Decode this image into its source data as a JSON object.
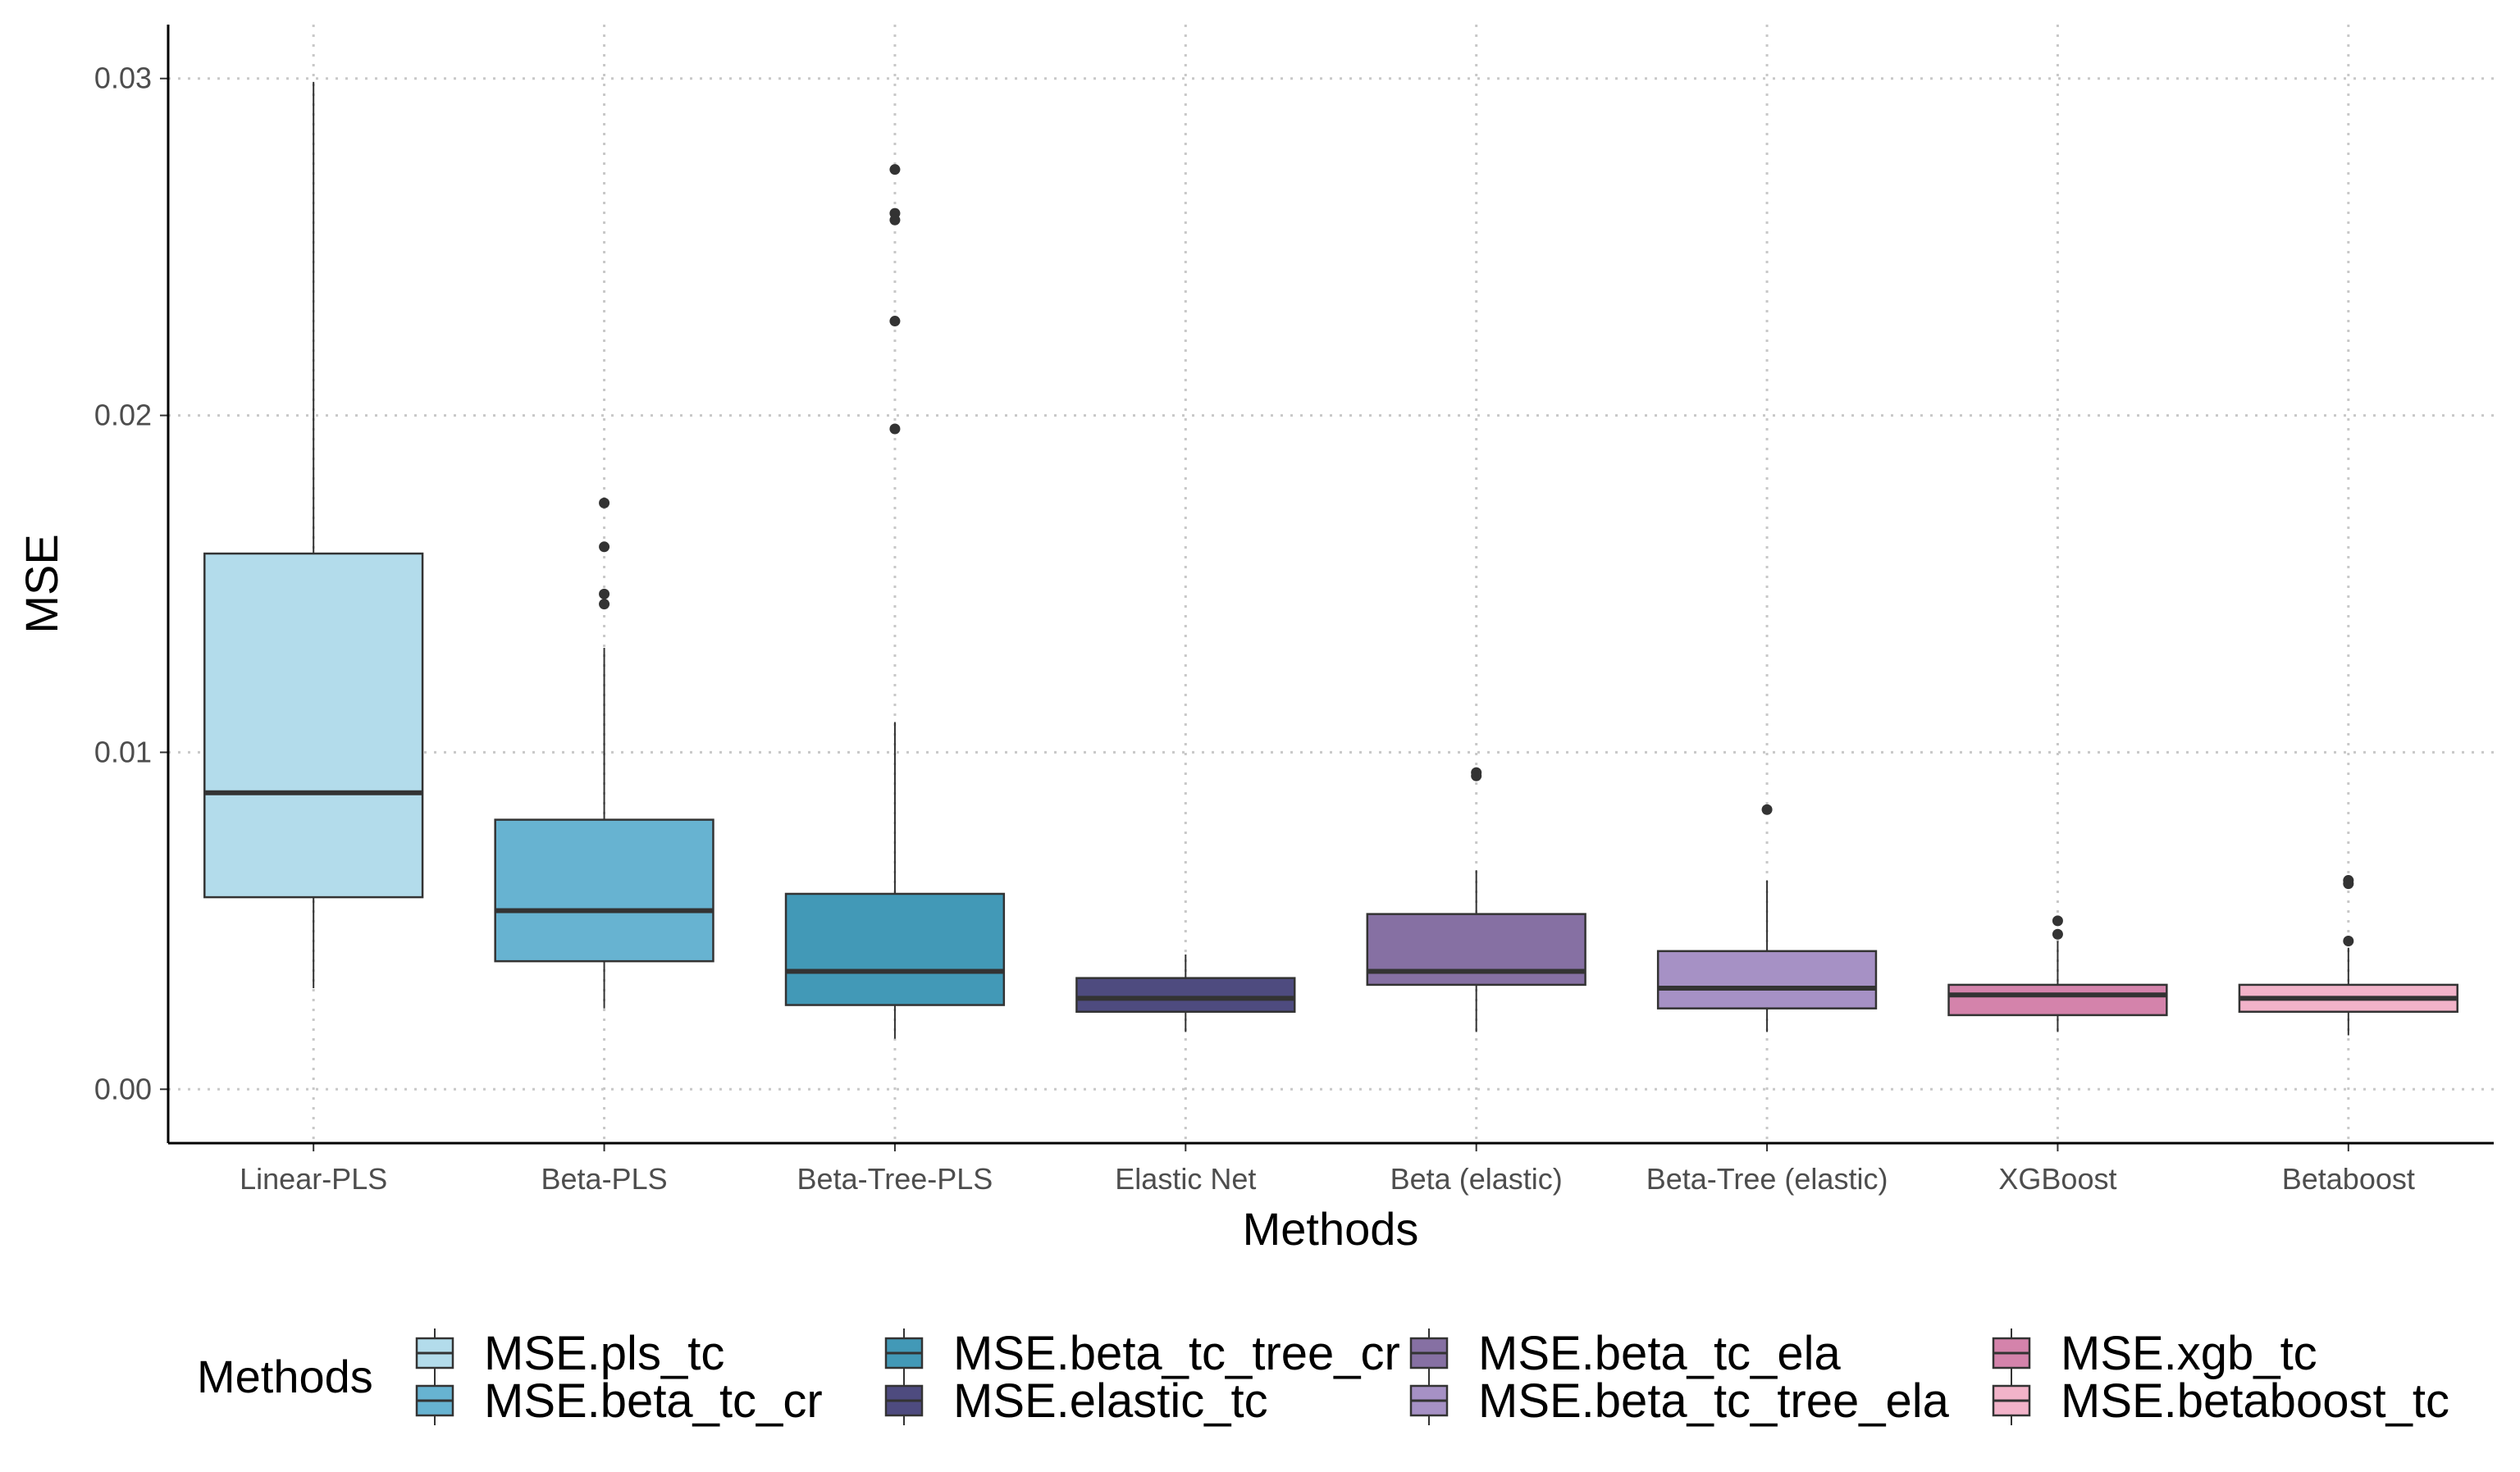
{
  "chart_data": {
    "type": "boxplot",
    "title": "",
    "xlabel": "Methods",
    "ylabel": "MSE",
    "ylim": [
      -0.0016,
      0.0316
    ],
    "yticks": [
      0.0,
      0.01,
      0.02,
      0.03
    ],
    "ytick_labels": [
      "0.00",
      "0.01",
      "0.02",
      "0.03"
    ],
    "grid": true,
    "legend_position": "bottom",
    "legend_title": "Methods",
    "categories": [
      "Linear-PLS",
      "Beta-PLS",
      "Beta-Tree-PLS",
      "Elastic Net",
      "Beta (elastic)",
      "Beta-Tree (elastic)",
      "XGBoost",
      "Betaboost"
    ],
    "series": [
      {
        "name": "MSE.pls_tc",
        "color": "#b3dceb",
        "whisker_low": 0.003,
        "q1": 0.0057,
        "median": 0.0088,
        "q3": 0.0159,
        "whisker_high": 0.0299,
        "outliers": []
      },
      {
        "name": "MSE.beta_tc_cr",
        "color": "#67b3d1",
        "whisker_low": 0.0024,
        "q1": 0.0038,
        "median": 0.0053,
        "q3": 0.008,
        "whisker_high": 0.0131,
        "outliers": [
          0.0174,
          0.0161,
          0.0147,
          0.0144
        ]
      },
      {
        "name": "MSE.beta_tc_tree_cr",
        "color": "#4299b7",
        "whisker_low": 0.0015,
        "q1": 0.0025,
        "median": 0.0035,
        "q3": 0.0058,
        "whisker_high": 0.0109,
        "outliers": [
          0.0273,
          0.026,
          0.0258,
          0.0228,
          0.0196
        ]
      },
      {
        "name": "MSE.elastic_tc",
        "color": "#4e4b7f",
        "whisker_low": 0.0017,
        "q1": 0.0023,
        "median": 0.0027,
        "q3": 0.0033,
        "whisker_high": 0.004,
        "outliers": []
      },
      {
        "name": "MSE.beta_tc_ela",
        "color": "#8670a3",
        "whisker_low": 0.0017,
        "q1": 0.0031,
        "median": 0.0035,
        "q3": 0.0052,
        "whisker_high": 0.0065,
        "outliers": [
          0.0094,
          0.0093
        ]
      },
      {
        "name": "MSE.beta_tc_tree_ela",
        "color": "#a691c5",
        "whisker_low": 0.0017,
        "q1": 0.0024,
        "median": 0.003,
        "q3": 0.0041,
        "whisker_high": 0.0062,
        "outliers": [
          0.0083
        ]
      },
      {
        "name": "MSE.xgb_tc",
        "color": "#d483ab",
        "whisker_low": 0.0017,
        "q1": 0.0022,
        "median": 0.0028,
        "q3": 0.0031,
        "whisker_high": 0.0044,
        "outliers": [
          0.005,
          0.0046
        ]
      },
      {
        "name": "MSE.betaboost_tc",
        "color": "#f2b3c9",
        "whisker_low": 0.0016,
        "q1": 0.0023,
        "median": 0.0027,
        "q3": 0.0031,
        "whisker_high": 0.0042,
        "outliers": [
          0.0062,
          0.0061,
          0.0044
        ]
      }
    ]
  }
}
